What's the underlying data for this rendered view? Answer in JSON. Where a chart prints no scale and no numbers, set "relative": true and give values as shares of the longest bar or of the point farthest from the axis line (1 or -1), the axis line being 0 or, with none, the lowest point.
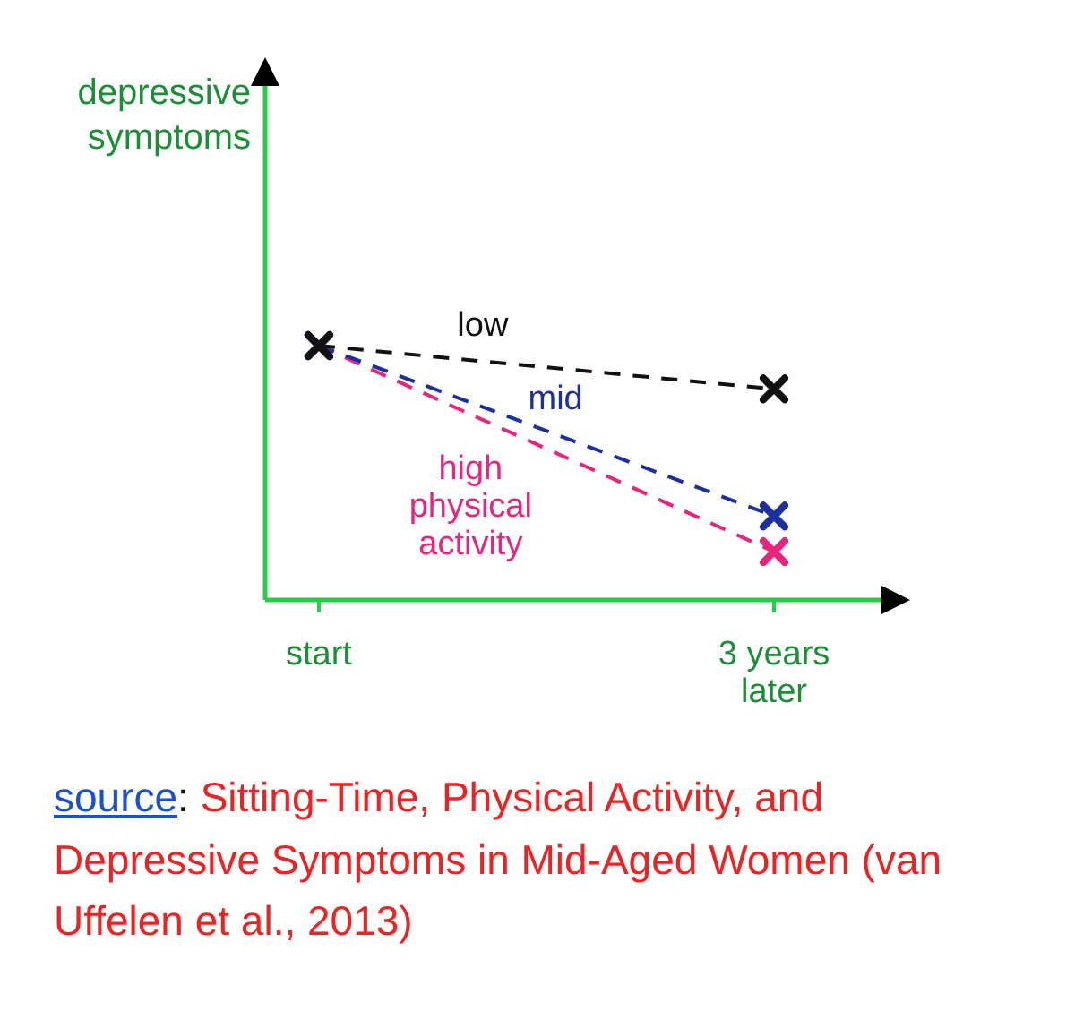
{
  "chart_data": {
    "type": "line",
    "categories": [
      "start",
      "3 years later"
    ],
    "relative": true,
    "series": [
      {
        "name": "low",
        "color": "#111111",
        "values": [
          1,
          0.83
        ]
      },
      {
        "name": "mid",
        "color": "#1b2f9e",
        "values": [
          1,
          0.33
        ]
      },
      {
        "name": "high physical activity",
        "color": "#e8247c",
        "values": [
          1,
          0.19
        ]
      }
    ],
    "marker": "cross",
    "line_style": "dashed",
    "annotations": [
      "depressive symptoms",
      "source: Sitting-Time, Physical Activity, and Depressive Symptoms in Mid-Aged Women (van Uffelen et al., 2013)"
    ]
  }
}
